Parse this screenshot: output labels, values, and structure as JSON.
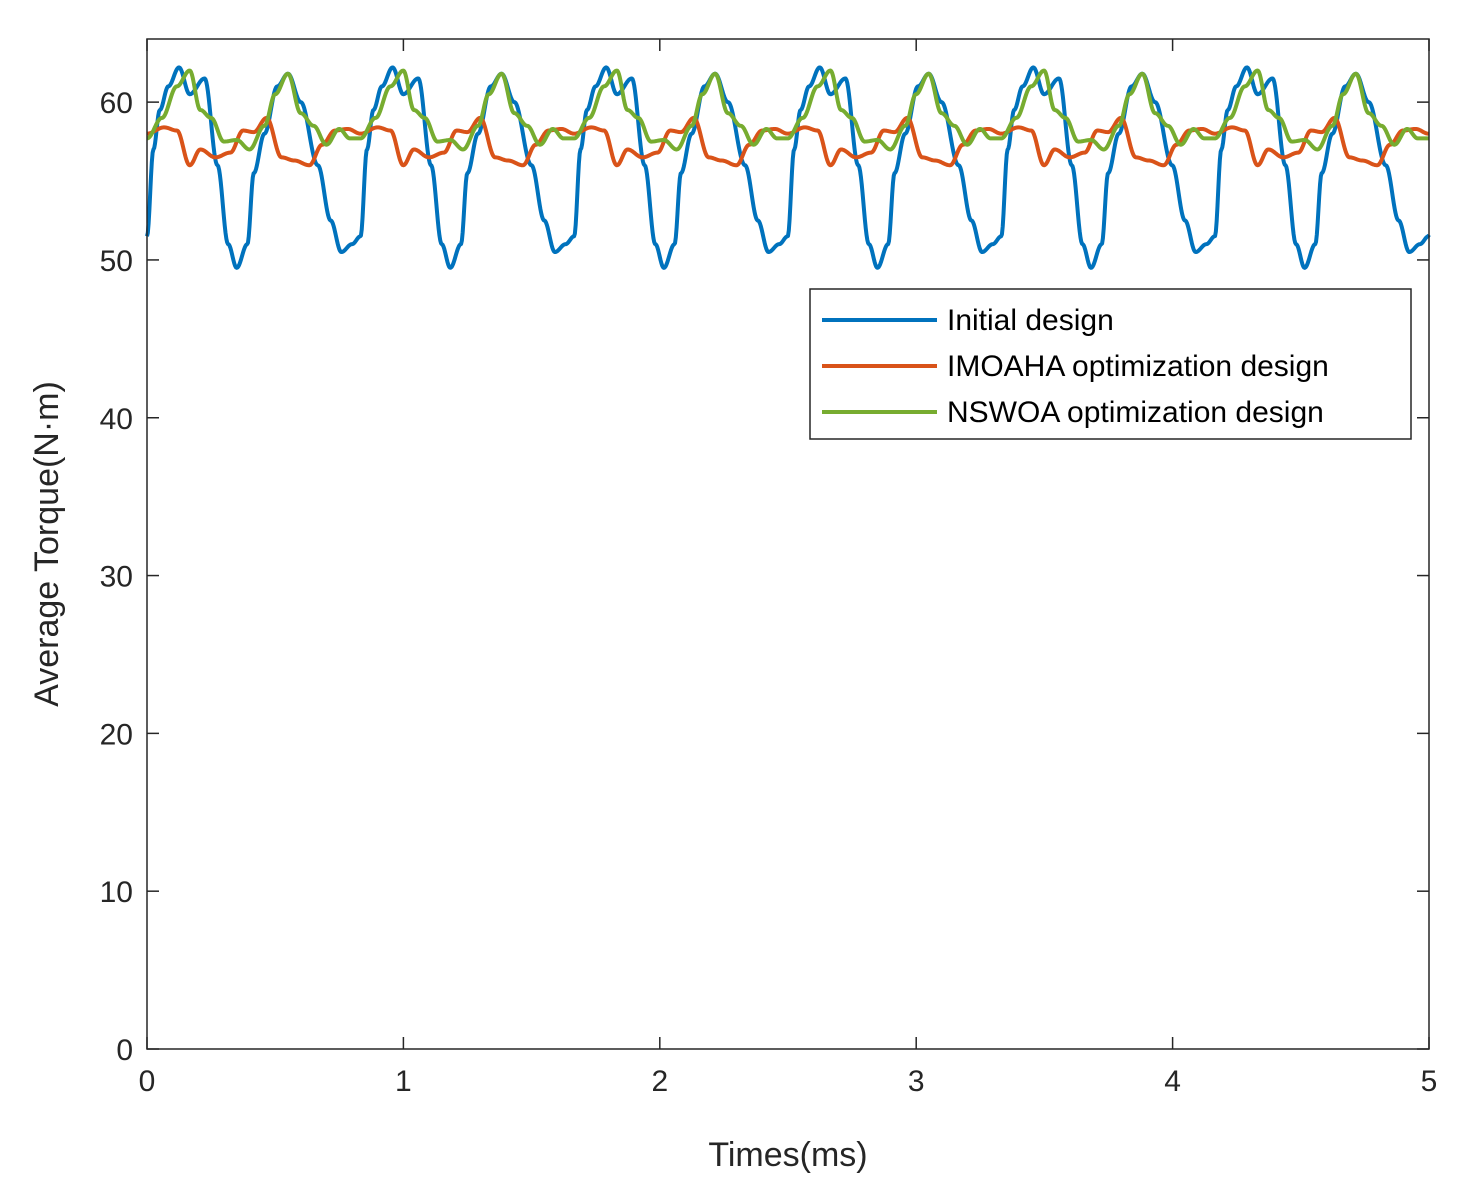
{
  "chart_data": {
    "type": "line",
    "title": "",
    "xlabel": "Times(ms)",
    "ylabel": "Average Torque(N·m)",
    "xlim": [
      0,
      5
    ],
    "ylim": [
      0,
      64
    ],
    "xticks": [
      0,
      1,
      2,
      3,
      4,
      5
    ],
    "yticks": [
      0,
      10,
      20,
      30,
      40,
      50,
      60
    ],
    "xtick_labels": [
      "0",
      "1",
      "2",
      "3",
      "4",
      "5"
    ],
    "ytick_labels": [
      "0",
      "10",
      "20",
      "30",
      "40",
      "50",
      "60"
    ],
    "grid": false,
    "legend_position": "top-right",
    "period_ms": 0.833,
    "series": [
      {
        "name": "Initial design",
        "color": "#0072BD",
        "phase": [
          0,
          0.03,
          0.06,
          0.1,
          0.15,
          0.2,
          0.27,
          0.33,
          0.38,
          0.42,
          0.47,
          0.5,
          0.55,
          0.61,
          0.66,
          0.72,
          0.8,
          0.86,
          0.91,
          0.96,
          1.0
        ],
        "values": [
          51.5,
          57.0,
          59.5,
          61.0,
          62.2,
          60.5,
          61.5,
          56.0,
          51.0,
          49.5,
          51.0,
          55.5,
          58.0,
          61.0,
          61.8,
          60.0,
          56.0,
          52.5,
          50.5,
          51.0,
          51.5
        ]
      },
      {
        "name": "IMOAHA optimization design",
        "color": "#D95319",
        "phase": [
          0,
          0.08,
          0.14,
          0.2,
          0.25,
          0.32,
          0.39,
          0.45,
          0.5,
          0.56,
          0.63,
          0.69,
          0.76,
          0.82,
          0.88,
          0.94,
          1.0
        ],
        "values": [
          58.0,
          58.4,
          58.2,
          56.0,
          57.0,
          56.5,
          56.8,
          58.2,
          58.1,
          59.0,
          56.5,
          56.3,
          56.0,
          57.3,
          58.2,
          58.3,
          58.0
        ]
      },
      {
        "name": "NSWOA optimization design",
        "color": "#77AC30",
        "phase": [
          0,
          0.07,
          0.14,
          0.2,
          0.25,
          0.3,
          0.36,
          0.42,
          0.48,
          0.55,
          0.6,
          0.66,
          0.72,
          0.78,
          0.84,
          0.9,
          0.95,
          1.0
        ],
        "values": [
          57.7,
          59.0,
          61.0,
          62.0,
          59.5,
          59.0,
          57.5,
          57.6,
          57.0,
          58.5,
          60.5,
          61.8,
          59.3,
          58.5,
          57.3,
          58.3,
          57.7,
          57.7
        ]
      }
    ]
  }
}
